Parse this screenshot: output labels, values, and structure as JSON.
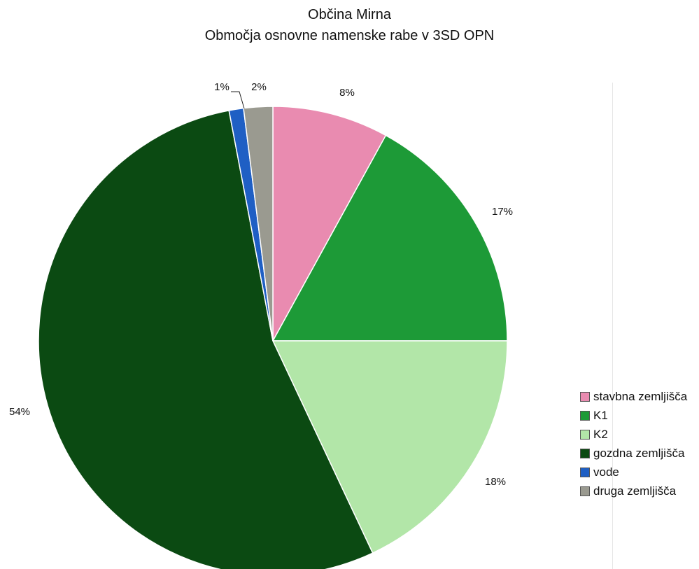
{
  "chart_data": {
    "type": "pie",
    "title": "Občina Mirna",
    "subtitle": "Območja osnovne namenske rabe v 3SD OPN",
    "slices": [
      {
        "label": "stavbna zemljišča",
        "value": 8,
        "value_label": "8%",
        "color": "#e98bb0"
      },
      {
        "label": "K1",
        "value": 17,
        "value_label": "17%",
        "color": "#1d9a37"
      },
      {
        "label": "K2",
        "value": 18,
        "value_label": "18%",
        "color": "#b2e6a8"
      },
      {
        "label": "gozdna zemljišča",
        "value": 54,
        "value_label": "54%",
        "color": "#0b4a12"
      },
      {
        "label": "vode",
        "value": 1,
        "value_label": "1%",
        "color": "#1f5fc4"
      },
      {
        "label": "druga zemljišča",
        "value": 2,
        "value_label": "2%",
        "color": "#9a9a90"
      }
    ],
    "start_angle_deg": 0,
    "direction": "clockwise",
    "legend_position": "right"
  }
}
